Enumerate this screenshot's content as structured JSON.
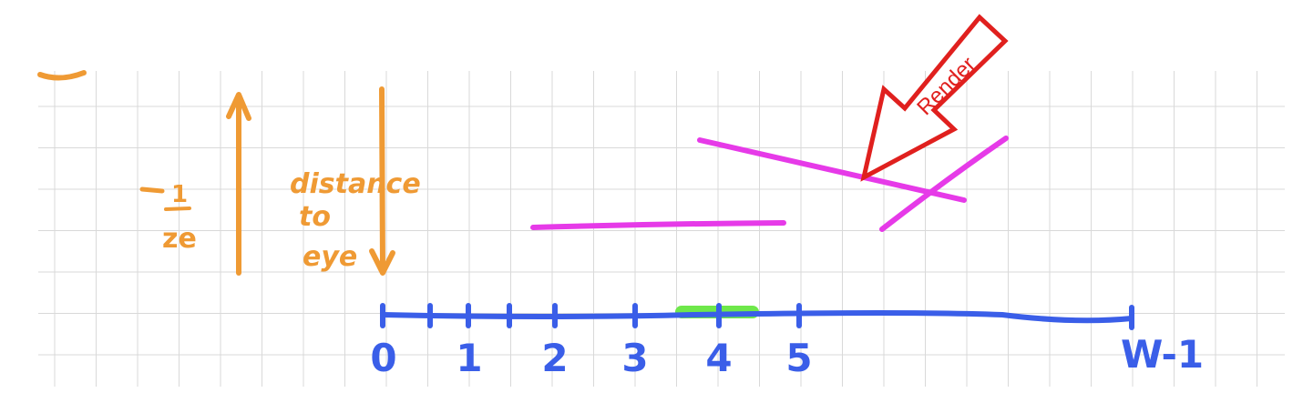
{
  "colors": {
    "grid": "#d9d9d9",
    "orange_ink": "#ef9a34",
    "blue_ink": "#3a5ee8",
    "magenta_ink": "#e63ae8",
    "green_ink": "#6ee84a",
    "red_arrow": "#e0201e"
  },
  "left_annotation": {
    "fraction_numerator": "1",
    "fraction_denominator": "ze",
    "distance_words": [
      "distance",
      "to",
      "eye"
    ]
  },
  "axis": {
    "tick_labels": [
      "0",
      "1",
      "2",
      "3",
      "4",
      "5"
    ],
    "end_label": "W-1"
  },
  "arrow": {
    "label": "Render",
    "icon": "render-arrow-icon"
  }
}
